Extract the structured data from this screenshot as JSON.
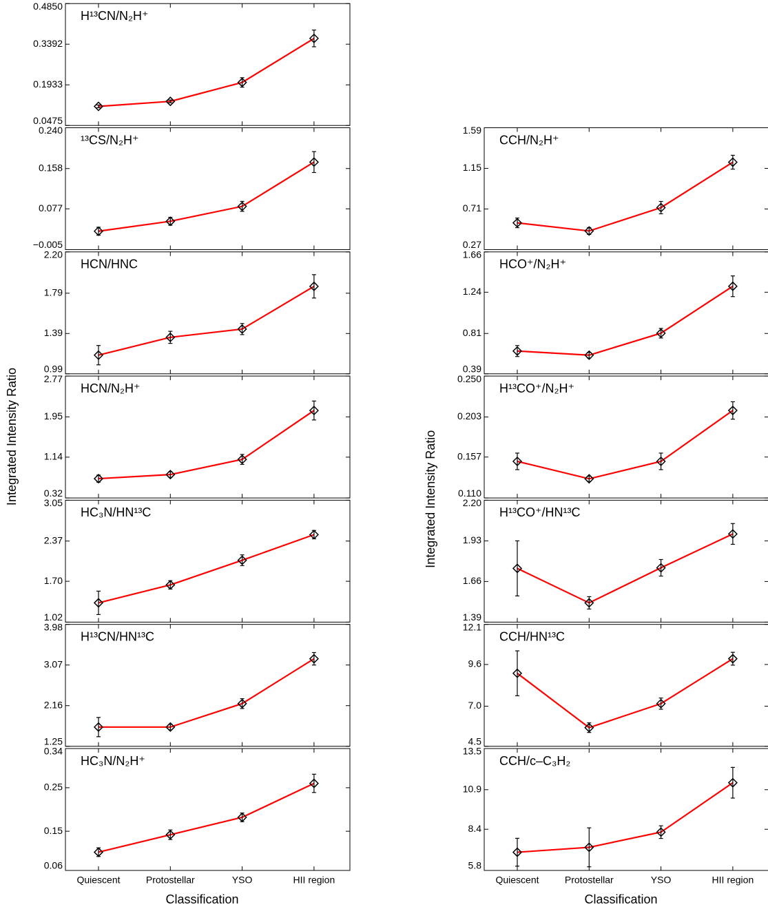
{
  "chart_data": [
    {
      "type": "line",
      "color": "#ff0000",
      "title_color": "#0000ff",
      "ylabel": "Integrated Intensity Ratio",
      "xlabel": "Classification",
      "categories": [
        "Quiescent",
        "Protostellar",
        "YSO",
        "HII region"
      ],
      "panels": [
        {
          "title": "H¹³CN/N₂H⁺",
          "ylim": [
            0.0475,
            0.485
          ],
          "yticks": [
            0.0475,
            0.1933,
            0.3392,
            {
              "value": 0.485,
              "label": "0.4850"
            }
          ],
          "values": [
            0.116,
            0.134,
            0.202,
            0.36
          ],
          "errors": [
            0.005,
            0.005,
            0.017,
            0.03
          ]
        },
        {
          "title": "¹³CS/N₂H⁺",
          "ylim": [
            -0.005,
            0.24
          ],
          "yticks": [
            {
              "value": -0.005,
              "label": "−0.005"
            },
            0.077,
            0.158,
            {
              "value": 0.24,
              "label": "0.240"
            }
          ],
          "values": [
            0.032,
            0.052,
            0.082,
            0.171
          ],
          "errors": [
            0.008,
            0.008,
            0.01,
            0.021
          ]
        },
        {
          "title": "HCN/HNC",
          "ylim": [
            0.99,
            2.2
          ],
          "yticks": [
            0.99,
            1.39,
            1.79,
            {
              "value": 2.2,
              "label": "2.20"
            }
          ],
          "values": [
            1.175,
            1.352,
            1.434,
            1.858
          ],
          "errors": [
            0.096,
            0.06,
            0.055,
            0.116
          ]
        },
        {
          "title": "HCN/N₂H⁺",
          "ylim": [
            0.32,
            2.77
          ],
          "yticks": [
            0.32,
            1.14,
            1.95,
            2.77
          ],
          "values": [
            0.708,
            0.79,
            1.095,
            2.078
          ],
          "errors": [
            0.07,
            0.055,
            0.1,
            0.19
          ]
        },
        {
          "title": "HC₃N/HN¹³C",
          "ylim": [
            1.02,
            3.05
          ],
          "yticks": [
            1.02,
            {
              "value": 1.7,
              "label": "1.70"
            },
            2.37,
            3.05
          ],
          "values": [
            1.341,
            1.64,
            2.05,
            2.477
          ],
          "errors": [
            0.195,
            0.07,
            0.09,
            0.07
          ]
        },
        {
          "title": "H¹³CN/HN¹³C",
          "ylim": [
            1.25,
            3.98
          ],
          "yticks": [
            1.25,
            2.16,
            3.07,
            3.98
          ],
          "values": [
            1.68,
            1.68,
            2.206,
            3.21
          ],
          "errors": [
            0.216,
            0.06,
            0.11,
            0.14
          ]
        },
        {
          "title": "HC₃N/N₂H⁺",
          "ylim": [
            0.06,
            0.34
          ],
          "yticks": [
            0.06,
            0.15,
            0.25,
            0.34
          ],
          "values": [
            0.102,
            0.142,
            0.182,
            0.26
          ],
          "errors": [
            0.01,
            0.011,
            0.01,
            0.021
          ]
        }
      ]
    },
    {
      "type": "line",
      "color": "#ff0000",
      "title_color": "#0000ff",
      "ylabel": "Integrated Intensity Ratio",
      "xlabel": "Classification",
      "categories": [
        "Quiescent",
        "Protostellar",
        "YSO",
        "HII region"
      ],
      "panels": [
        {
          "title": "CCH/N₂H⁺",
          "ylim": [
            0.27,
            1.59
          ],
          "yticks": [
            0.27,
            0.71,
            1.15,
            1.59
          ],
          "values": [
            0.56,
            0.472,
            0.725,
            1.217
          ],
          "errors": [
            0.052,
            0.037,
            0.067,
            0.075
          ]
        },
        {
          "title": "HCO⁺/N₂H⁺",
          "ylim": [
            0.39,
            1.66
          ],
          "yticks": [
            0.39,
            0.81,
            1.24,
            1.66
          ],
          "values": [
            0.627,
            0.584,
            0.813,
            1.302
          ],
          "errors": [
            0.057,
            0.03,
            0.05,
            0.108
          ]
        },
        {
          "title": "H¹³CO⁺/N₂H⁺",
          "ylim": [
            0.11,
            0.25
          ],
          "yticks": [
            {
              "value": 0.11,
              "label": "0.110"
            },
            0.157,
            0.203,
            {
              "value": 0.25,
              "label": "0.250"
            }
          ],
          "values": [
            0.152,
            0.132,
            0.152,
            0.2105
          ],
          "errors": [
            0.0095,
            0.003,
            0.0095,
            0.01
          ]
        },
        {
          "title": "H¹³CO⁺/HN¹³C",
          "ylim": [
            1.39,
            2.2
          ],
          "yticks": [
            1.39,
            1.66,
            1.93,
            {
              "value": 2.2,
              "label": "2.20"
            }
          ],
          "values": [
            1.747,
            1.518,
            1.751,
            1.976
          ],
          "errors": [
            0.183,
            0.041,
            0.055,
            0.069
          ]
        },
        {
          "title": "CCH/HN¹³C",
          "ylim": [
            4.5,
            12.1
          ],
          "yticks": [
            4.5,
            {
              "value": 7,
              "label": "7.0"
            },
            9.6,
            12.1
          ],
          "values": [
            9.05,
            5.66,
            7.16,
            9.96
          ],
          "errors": [
            1.4,
            0.3,
            0.35,
            0.4
          ]
        },
        {
          "title": "CCH/c–C₃H₂",
          "ylim": [
            5.8,
            13.5
          ],
          "yticks": [
            5.8,
            8.4,
            10.9,
            13.5
          ],
          "values": [
            6.95,
            7.26,
            8.22,
            11.34
          ],
          "errors": [
            0.88,
            1.23,
            0.4,
            0.97
          ]
        }
      ]
    }
  ]
}
